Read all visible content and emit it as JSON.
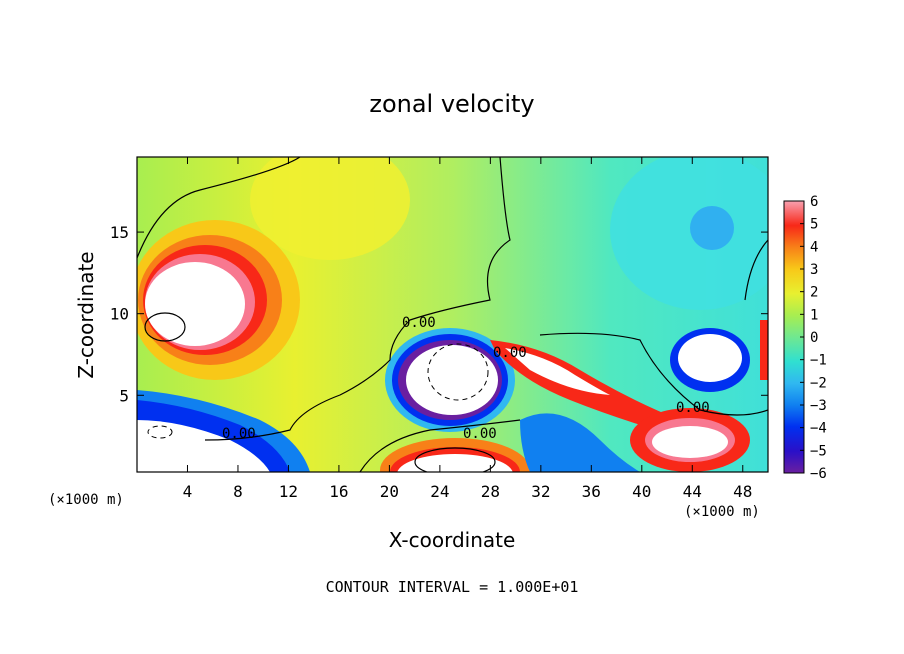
{
  "chart_data": {
    "type": "heatmap",
    "title": "zonal velocity",
    "xlabel": "X-coordinate",
    "ylabel": "Z-coordinate",
    "x_unit": "(×1000 m)",
    "z_unit": "(×1000 m)",
    "xlim": [
      0,
      50
    ],
    "ylim": [
      0.3,
      19.6
    ],
    "x_ticks": [
      "4",
      "8",
      "12",
      "16",
      "20",
      "24",
      "28",
      "32",
      "36",
      "40",
      "44",
      "48"
    ],
    "x_tick_values": [
      4,
      8,
      12,
      16,
      20,
      24,
      28,
      32,
      36,
      40,
      44,
      48
    ],
    "y_ticks": [
      "5",
      "10",
      "15"
    ],
    "y_tick_values": [
      5,
      10,
      15
    ],
    "colorbar": {
      "ticks": [
        "6",
        "5",
        "4",
        "3",
        "2",
        "1",
        "0",
        "−1",
        "−2",
        "−3",
        "−4",
        "−5",
        "−6"
      ],
      "range": [
        -6,
        6
      ]
    },
    "contour_label": "0.00",
    "contour_interval_text": "CONTOUR INTERVAL = 1.000E+01",
    "colors": {
      "levels": [
        "#6a1fa0",
        "#2a10c8",
        "#0030f0",
        "#1080f0",
        "#30b8f0",
        "#30e0d0",
        "#70e890",
        "#a8ee50",
        "#e8f030",
        "#f8c818",
        "#f88018",
        "#f82818",
        "#f87890",
        "#f8b8b8"
      ],
      "saturated": "#ffffff"
    }
  }
}
